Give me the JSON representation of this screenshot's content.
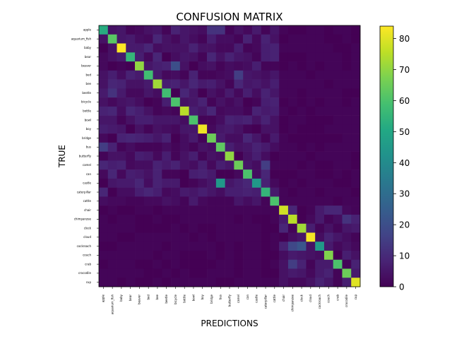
{
  "chart_data": {
    "type": "heatmap",
    "title": "CONFUSION MATRIX",
    "xlabel": "PREDICTIONS",
    "ylabel": "TRUE",
    "labels": [
      "apple",
      "aquarium_fish",
      "baby",
      "bear",
      "beaver",
      "bed",
      "bee",
      "beetle",
      "bicycle",
      "bottle",
      "bowl",
      "boy",
      "bridge",
      "bus",
      "butterfly",
      "camel",
      "can",
      "castle",
      "caterpillar",
      "cattle",
      "chair",
      "chimpanzee",
      "clock",
      "cloud",
      "cockroach",
      "couch",
      "crab",
      "crocodile",
      "cup"
    ],
    "diagonal": [
      52,
      62,
      84,
      55,
      70,
      58,
      72,
      58,
      60,
      75,
      60,
      82,
      65,
      63,
      70,
      65,
      60,
      45,
      55,
      60,
      78,
      75,
      72,
      83,
      45,
      68,
      60,
      65,
      80
    ],
    "notable_off_diagonal": [
      {
        "true": "castle",
        "pred": "bus",
        "value": 45
      },
      {
        "true": "beaver",
        "pred": "bicycle",
        "value": 20
      },
      {
        "true": "cockroach",
        "pred": "clock",
        "value": 22
      },
      {
        "true": "cockroach",
        "pred": "chimpanzee",
        "value": 18
      },
      {
        "true": "crab",
        "pred": "chimpanzee",
        "value": 15
      },
      {
        "true": "apple",
        "pred": "bridge",
        "value": 12
      },
      {
        "true": "apple",
        "pred": "bus",
        "value": 12
      },
      {
        "true": "bus",
        "pred": "apple",
        "value": 15
      },
      {
        "true": "beetle",
        "pred": "aquarium_fish",
        "value": 12
      },
      {
        "true": "bed",
        "pred": "camel",
        "value": 15
      },
      {
        "true": "camel",
        "pred": "caterpillar",
        "value": 15
      },
      {
        "true": "chimpanzee",
        "pred": "crocodile",
        "value": 12
      }
    ],
    "colorbar": {
      "min": 0,
      "max": 84,
      "ticks": [
        0,
        10,
        20,
        30,
        40,
        50,
        60,
        70,
        80
      ],
      "colormap": "viridis"
    }
  }
}
